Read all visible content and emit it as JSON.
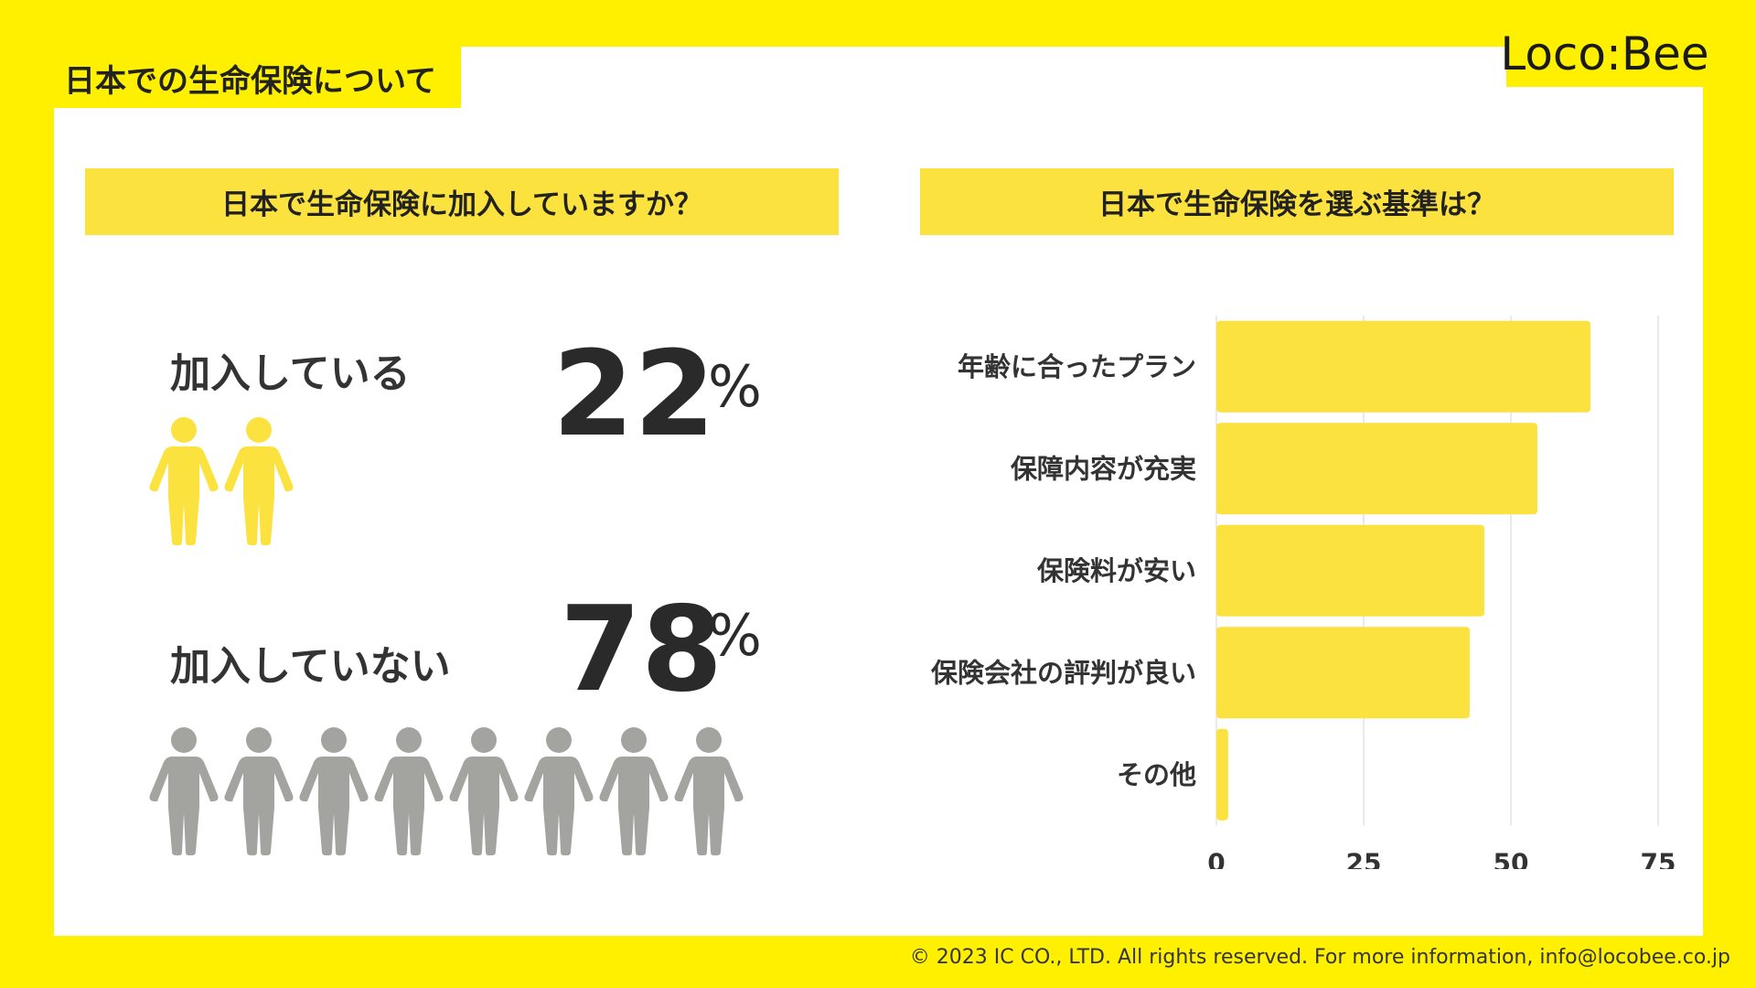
{
  "page_title": "日本での生命保険について",
  "brand": {
    "logo_text": "Loco:Bee"
  },
  "left": {
    "header": "日本で生命保険に加入していますか？",
    "yes": {
      "label": "加入している",
      "value": "22",
      "unit": "%",
      "people_count": 2,
      "color": "#FCE23E"
    },
    "no": {
      "label": "加入していない",
      "value": "78",
      "unit": "%",
      "people_count": 8,
      "color": "#A3A3A0"
    }
  },
  "right": {
    "header": "日本で生命保険を選ぶ基準は？"
  },
  "chart_data": {
    "type": "bar",
    "orientation": "horizontal",
    "title": "日本で生命保険を選ぶ基準は？",
    "categories": [
      "年齢に合ったプラン",
      "保障内容が充実",
      "保険料が安い",
      "保険会社の評判が良い",
      "その他"
    ],
    "values": [
      63.5,
      54.5,
      45.5,
      43,
      2
    ],
    "xlim": [
      0,
      75
    ],
    "xticks": [
      "0",
      "25",
      "50",
      "75"
    ],
    "grid": true,
    "bar_color": "#FCE23E"
  },
  "footer": "© 2023 IC CO., LTD. All rights reserved. For more information, info@locobee.co.jp"
}
